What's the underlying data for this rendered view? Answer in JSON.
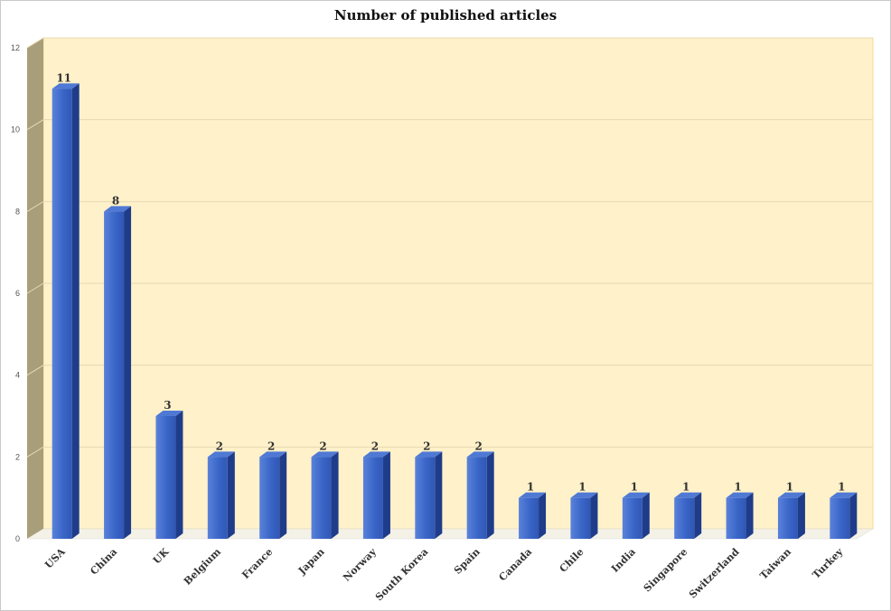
{
  "chart_data": {
    "type": "bar",
    "title": "Number of published articles",
    "xlabel": "",
    "ylabel": "",
    "categories": [
      "USA",
      "China",
      "UK",
      "Belgium",
      "France",
      "Japan",
      "Norway",
      "South Korea",
      "Spain",
      "Canada",
      "Chile",
      "India",
      "Singapore",
      "Switzerland",
      "Taiwan",
      "Turkey"
    ],
    "values": [
      11,
      8,
      3,
      2,
      2,
      2,
      2,
      2,
      2,
      1,
      1,
      1,
      1,
      1,
      1,
      1
    ],
    "data_labels": [
      "11",
      "8",
      "3",
      "2",
      "2",
      "2",
      "2",
      "2",
      "2",
      "1",
      "1",
      "1",
      "1",
      "1",
      "1",
      "1"
    ],
    "ylim": [
      0,
      12
    ],
    "yticks": [
      0,
      2,
      4,
      6,
      8,
      10,
      12
    ],
    "grid": true,
    "style": "3d-column",
    "colors": {
      "bar_front": "#3a66c8",
      "bar_side": "#1f3c8a",
      "bar_top": "#4f79d4",
      "wall": "#fff1c9",
      "wall_border": "#f0dc96",
      "side_wall": "#a89e7a",
      "gridline": "#e6d9b4"
    }
  }
}
